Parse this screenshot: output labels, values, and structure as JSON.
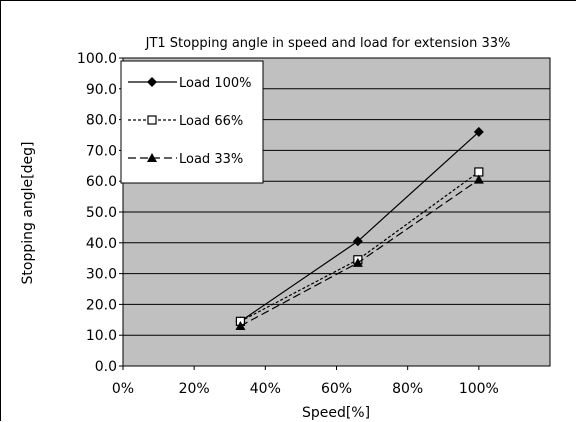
{
  "chart_data": {
    "type": "line",
    "title": "JT1 Stopping angle in speed and load for extension 33%",
    "xlabel": "Speed[%]",
    "ylabel": "Stopping angle[deg]",
    "xlim": [
      0,
      120
    ],
    "ylim": [
      0,
      100
    ],
    "x_ticks": [
      0,
      20,
      40,
      60,
      80,
      100
    ],
    "x_tick_labels": [
      "0%",
      "20%",
      "40%",
      "60%",
      "80%",
      "100%"
    ],
    "y_ticks": [
      0,
      10,
      20,
      30,
      40,
      50,
      60,
      70,
      80,
      90,
      100
    ],
    "y_tick_labels": [
      "0.0",
      "10.0",
      "20.0",
      "30.0",
      "40.0",
      "50.0",
      "60.0",
      "70.0",
      "80.0",
      "90.0",
      "100.0"
    ],
    "grid": "horizontal",
    "plot_background": "#c0c0c0",
    "legend_position": "top-left",
    "x": [
      33,
      66,
      100
    ],
    "series": [
      {
        "name": "Load 100%",
        "values": [
          14.5,
          40.5,
          76.0
        ],
        "marker": "diamond-filled",
        "line": "solid",
        "color": "#000000"
      },
      {
        "name": "Load 66%",
        "values": [
          14.5,
          34.5,
          63.0
        ],
        "marker": "square-open",
        "line": "dotted",
        "color": "#000000"
      },
      {
        "name": "Load 33%",
        "values": [
          13.0,
          33.5,
          60.5
        ],
        "marker": "triangle-filled",
        "line": "dashed",
        "color": "#000000"
      }
    ]
  }
}
